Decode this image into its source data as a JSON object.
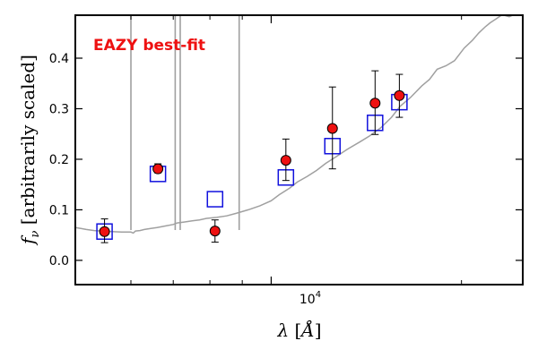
{
  "chart_data": {
    "type": "scatter",
    "annotation": "EAZY best-fit",
    "annotation_color": "#ee1111",
    "xlabel": "λ [Å]",
    "ylabel": "f_ν [arbitrarily scaled]",
    "x_scale": "log",
    "xlim": [
      4900,
      25000
    ],
    "ylim": [
      -0.048,
      0.485
    ],
    "y_ticks": [
      0.0,
      0.1,
      0.2,
      0.3,
      0.4
    ],
    "y_tick_labels": [
      "0.0",
      "0.1",
      "0.2",
      "0.3",
      "0.4"
    ],
    "x_tick_major": 10000,
    "x_tick_major_label": "10^4",
    "x_ticks_minor": [
      6000,
      7000,
      8000,
      9000,
      20000
    ],
    "observed": {
      "color": "#ee1111",
      "points": [
        {
          "x": 5450,
          "y": 0.057,
          "err_low": 0.022,
          "err_high": 0.025
        },
        {
          "x": 6620,
          "y": 0.181,
          "err_low": 0.008,
          "err_high": 0.01
        },
        {
          "x": 8150,
          "y": 0.058,
          "err_low": 0.022,
          "err_high": 0.022
        },
        {
          "x": 10550,
          "y": 0.198,
          "err_low": 0.04,
          "err_high": 0.042
        },
        {
          "x": 12500,
          "y": 0.261,
          "err_low": 0.08,
          "err_high": 0.082
        },
        {
          "x": 14600,
          "y": 0.311,
          "err_low": 0.062,
          "err_high": 0.064
        },
        {
          "x": 15950,
          "y": 0.326,
          "err_low": 0.043,
          "err_high": 0.042
        }
      ]
    },
    "model_photometry": {
      "color": "#1111dd",
      "points": [
        {
          "x": 5450,
          "y": 0.057
        },
        {
          "x": 6620,
          "y": 0.171
        },
        {
          "x": 8150,
          "y": 0.121
        },
        {
          "x": 10550,
          "y": 0.164
        },
        {
          "x": 12500,
          "y": 0.226
        },
        {
          "x": 14600,
          "y": 0.272
        },
        {
          "x": 15950,
          "y": 0.313
        }
      ]
    },
    "template": {
      "color": "#a0a0a0",
      "points": [
        [
          4900,
          0.065
        ],
        [
          5000,
          0.063
        ],
        [
          5100,
          0.061
        ],
        [
          5250,
          0.059
        ],
        [
          5400,
          0.058
        ],
        [
          5600,
          0.057
        ],
        [
          5800,
          0.056
        ],
        [
          6000,
          0.056
        ],
        [
          6050,
          0.054
        ],
        [
          6100,
          0.058
        ],
        [
          6200,
          0.059
        ],
        [
          6300,
          0.061
        ],
        [
          6450,
          0.063
        ],
        [
          6600,
          0.065
        ],
        [
          6800,
          0.068
        ],
        [
          7000,
          0.071
        ],
        [
          7100,
          0.074
        ],
        [
          7300,
          0.076
        ],
        [
          7500,
          0.078
        ],
        [
          7700,
          0.08
        ],
        [
          7900,
          0.083
        ],
        [
          8200,
          0.085
        ],
        [
          8500,
          0.088
        ],
        [
          8800,
          0.093
        ],
        [
          9200,
          0.1
        ],
        [
          9600,
          0.108
        ],
        [
          10000,
          0.118
        ],
        [
          10300,
          0.13
        ],
        [
          10700,
          0.143
        ],
        [
          11000,
          0.155
        ],
        [
          11400,
          0.166
        ],
        [
          11800,
          0.178
        ],
        [
          12200,
          0.192
        ],
        [
          12700,
          0.206
        ],
        [
          13200,
          0.22
        ],
        [
          13800,
          0.234
        ],
        [
          14300,
          0.246
        ],
        [
          14900,
          0.262
        ],
        [
          15500,
          0.283
        ],
        [
          16000,
          0.305
        ],
        [
          16600,
          0.322
        ],
        [
          17300,
          0.345
        ],
        [
          17800,
          0.358
        ],
        [
          18300,
          0.378
        ],
        [
          18900,
          0.385
        ],
        [
          19500,
          0.395
        ],
        [
          20200,
          0.42
        ],
        [
          20800,
          0.435
        ],
        [
          21300,
          0.45
        ],
        [
          21800,
          0.462
        ],
        [
          22200,
          0.47
        ],
        [
          22700,
          0.478
        ],
        [
          23200,
          0.486
        ],
        [
          23800,
          0.482
        ],
        [
          24400,
          0.488
        ],
        [
          25000,
          0.49
        ]
      ],
      "emission_lines": [
        6000,
        7050,
        7180,
        8900
      ]
    }
  }
}
